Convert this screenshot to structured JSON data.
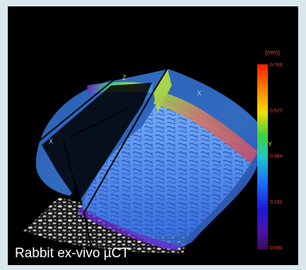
{
  "caption": "Rabbit ex-vivo µCT",
  "colorbar": {
    "unit": "(mm)",
    "ticks": [
      "0.769",
      "0.577",
      "0.384",
      "0.192",
      "0.000"
    ],
    "colors": [
      "#ff1a00",
      "#ff7a00",
      "#f0e000",
      "#3fd23a",
      "#1ec8c8",
      "#1a6cff",
      "#1a1ad8",
      "#4a12a8",
      "#3a0a5a"
    ]
  },
  "axes": {
    "x_label": "X",
    "y_label": "Y",
    "z_label": "Z"
  },
  "colors": {
    "background": "#000000",
    "frame": "#d9e8ef",
    "surface": "#3a8cf0",
    "label": "#e8432b"
  }
}
